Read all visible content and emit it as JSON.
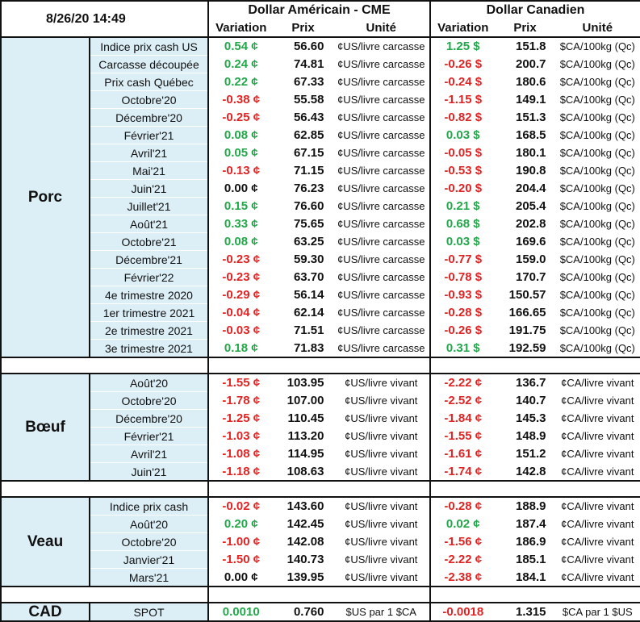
{
  "header": {
    "date": "8/26/20 14:49",
    "us_group": "Dollar Américain - CME",
    "ca_group": "Dollar Canadien",
    "col_variation": "Variation",
    "col_prix": "Prix",
    "col_unite": "Unité"
  },
  "sections": {
    "porc": {
      "name": "Porc",
      "rows": [
        {
          "label": "Indice prix cash US",
          "us_var": "0.54 ¢",
          "us_prix": "56.60",
          "us_unit": "¢US/livre carcasse",
          "ca_var": "1.25 $",
          "ca_prix": "151.8",
          "ca_unit": "$CA/100kg (Qc)"
        },
        {
          "label": "Carcasse découpée",
          "us_var": "0.24 ¢",
          "us_prix": "74.81",
          "us_unit": "¢US/livre carcasse",
          "ca_var": "-0.26 $",
          "ca_prix": "200.7",
          "ca_unit": "$CA/100kg (Qc)"
        },
        {
          "label": "Prix cash Québec",
          "us_var": "0.22 ¢",
          "us_prix": "67.33",
          "us_unit": "¢US/livre carcasse",
          "ca_var": "-0.24 $",
          "ca_prix": "180.6",
          "ca_unit": "$CA/100kg (Qc)"
        },
        {
          "label": "Octobre'20",
          "us_var": "-0.38 ¢",
          "us_prix": "55.58",
          "us_unit": "¢US/livre carcasse",
          "ca_var": "-1.15 $",
          "ca_prix": "149.1",
          "ca_unit": "$CA/100kg (Qc)"
        },
        {
          "label": "Décembre'20",
          "us_var": "-0.25 ¢",
          "us_prix": "56.43",
          "us_unit": "¢US/livre carcasse",
          "ca_var": "-0.82 $",
          "ca_prix": "151.3",
          "ca_unit": "$CA/100kg (Qc)"
        },
        {
          "label": "Février'21",
          "us_var": "0.08 ¢",
          "us_prix": "62.85",
          "us_unit": "¢US/livre carcasse",
          "ca_var": "0.03 $",
          "ca_prix": "168.5",
          "ca_unit": "$CA/100kg (Qc)"
        },
        {
          "label": "Avril'21",
          "us_var": "0.05 ¢",
          "us_prix": "67.15",
          "us_unit": "¢US/livre carcasse",
          "ca_var": "-0.05 $",
          "ca_prix": "180.1",
          "ca_unit": "$CA/100kg (Qc)"
        },
        {
          "label": "Mai'21",
          "us_var": "-0.13 ¢",
          "us_prix": "71.15",
          "us_unit": "¢US/livre carcasse",
          "ca_var": "-0.53 $",
          "ca_prix": "190.8",
          "ca_unit": "$CA/100kg (Qc)"
        },
        {
          "label": "Juin'21",
          "us_var": "0.00 ¢",
          "us_prix": "76.23",
          "us_unit": "¢US/livre carcasse",
          "ca_var": "-0.20 $",
          "ca_prix": "204.4",
          "ca_unit": "$CA/100kg (Qc)"
        },
        {
          "label": "Juillet'21",
          "us_var": "0.15 ¢",
          "us_prix": "76.60",
          "us_unit": "¢US/livre carcasse",
          "ca_var": "0.21 $",
          "ca_prix": "205.4",
          "ca_unit": "$CA/100kg (Qc)"
        },
        {
          "label": "Août'21",
          "us_var": "0.33 ¢",
          "us_prix": "75.65",
          "us_unit": "¢US/livre carcasse",
          "ca_var": "0.68 $",
          "ca_prix": "202.8",
          "ca_unit": "$CA/100kg (Qc)"
        },
        {
          "label": "Octobre'21",
          "us_var": "0.08 ¢",
          "us_prix": "63.25",
          "us_unit": "¢US/livre carcasse",
          "ca_var": "0.03 $",
          "ca_prix": "169.6",
          "ca_unit": "$CA/100kg (Qc)"
        },
        {
          "label": "Décembre'21",
          "us_var": "-0.23 ¢",
          "us_prix": "59.30",
          "us_unit": "¢US/livre carcasse",
          "ca_var": "-0.77 $",
          "ca_prix": "159.0",
          "ca_unit": "$CA/100kg (Qc)"
        },
        {
          "label": "Février'22",
          "us_var": "-0.23 ¢",
          "us_prix": "63.70",
          "us_unit": "¢US/livre carcasse",
          "ca_var": "-0.78 $",
          "ca_prix": "170.7",
          "ca_unit": "$CA/100kg (Qc)"
        },
        {
          "label": "4e trimestre 2020",
          "us_var": "-0.29 ¢",
          "us_prix": "56.14",
          "us_unit": "¢US/livre carcasse",
          "ca_var": "-0.93 $",
          "ca_prix": "150.57",
          "ca_unit": "$CA/100kg (Qc)"
        },
        {
          "label": "1er trimestre 2021",
          "us_var": "-0.04 ¢",
          "us_prix": "62.14",
          "us_unit": "¢US/livre carcasse",
          "ca_var": "-0.28 $",
          "ca_prix": "166.65",
          "ca_unit": "$CA/100kg (Qc)"
        },
        {
          "label": "2e trimestre 2021",
          "us_var": "-0.03 ¢",
          "us_prix": "71.51",
          "us_unit": "¢US/livre carcasse",
          "ca_var": "-0.26 $",
          "ca_prix": "191.75",
          "ca_unit": "$CA/100kg (Qc)"
        },
        {
          "label": "3e trimestre 2021",
          "us_var": "0.18 ¢",
          "us_prix": "71.83",
          "us_unit": "¢US/livre carcasse",
          "ca_var": "0.31 $",
          "ca_prix": "192.59",
          "ca_unit": "$CA/100kg (Qc)"
        }
      ]
    },
    "boeuf": {
      "name": "Bœuf",
      "rows": [
        {
          "label": "Août'20",
          "us_var": "-1.55 ¢",
          "us_prix": "103.95",
          "us_unit": "¢US/livre vivant",
          "ca_var": "-2.22 ¢",
          "ca_prix": "136.7",
          "ca_unit": "¢CA/livre vivant"
        },
        {
          "label": "Octobre'20",
          "us_var": "-1.78 ¢",
          "us_prix": "107.00",
          "us_unit": "¢US/livre vivant",
          "ca_var": "-2.52 ¢",
          "ca_prix": "140.7",
          "ca_unit": "¢CA/livre vivant"
        },
        {
          "label": "Décembre'20",
          "us_var": "-1.25 ¢",
          "us_prix": "110.45",
          "us_unit": "¢US/livre vivant",
          "ca_var": "-1.84 ¢",
          "ca_prix": "145.3",
          "ca_unit": "¢CA/livre vivant"
        },
        {
          "label": "Février'21",
          "us_var": "-1.03 ¢",
          "us_prix": "113.20",
          "us_unit": "¢US/livre vivant",
          "ca_var": "-1.55 ¢",
          "ca_prix": "148.9",
          "ca_unit": "¢CA/livre vivant"
        },
        {
          "label": "Avril'21",
          "us_var": "-1.08 ¢",
          "us_prix": "114.95",
          "us_unit": "¢US/livre vivant",
          "ca_var": "-1.61 ¢",
          "ca_prix": "151.2",
          "ca_unit": "¢CA/livre vivant"
        },
        {
          "label": "Juin'21",
          "us_var": "-1.18 ¢",
          "us_prix": "108.63",
          "us_unit": "¢US/livre vivant",
          "ca_var": "-1.74 ¢",
          "ca_prix": "142.8",
          "ca_unit": "¢CA/livre vivant"
        }
      ]
    },
    "veau": {
      "name": "Veau",
      "rows": [
        {
          "label": "Indice prix cash",
          "us_var": "-0.02 ¢",
          "us_prix": "143.60",
          "us_unit": "¢US/livre vivant",
          "ca_var": "-0.28 ¢",
          "ca_prix": "188.9",
          "ca_unit": "¢CA/livre vivant"
        },
        {
          "label": "Août'20",
          "us_var": "0.20 ¢",
          "us_prix": "142.45",
          "us_unit": "¢US/livre vivant",
          "ca_var": "0.02 ¢",
          "ca_prix": "187.4",
          "ca_unit": "¢CA/livre vivant"
        },
        {
          "label": "Octobre'20",
          "us_var": "-1.00 ¢",
          "us_prix": "142.08",
          "us_unit": "¢US/livre vivant",
          "ca_var": "-1.56 ¢",
          "ca_prix": "186.9",
          "ca_unit": "¢CA/livre vivant"
        },
        {
          "label": "Janvier'21",
          "us_var": "-1.50 ¢",
          "us_prix": "140.73",
          "us_unit": "¢US/livre vivant",
          "ca_var": "-2.22 ¢",
          "ca_prix": "185.1",
          "ca_unit": "¢CA/livre vivant"
        },
        {
          "label": "Mars'21",
          "us_var": "0.00 ¢",
          "us_prix": "139.95",
          "us_unit": "¢US/livre vivant",
          "ca_var": "-2.38 ¢",
          "ca_prix": "184.1",
          "ca_unit": "¢CA/livre vivant"
        }
      ]
    },
    "cad": {
      "name": "CAD",
      "rows": [
        {
          "label": "SPOT",
          "us_var": "0.0010",
          "us_prix": "0.760",
          "us_unit": "$US par 1 $CA",
          "ca_var": "-0.0018",
          "ca_prix": "1.315",
          "ca_unit": "$CA par 1 $US"
        }
      ]
    }
  },
  "colors": {
    "positive": "#22a84a",
    "negative": "#e02424",
    "zero": "#111111",
    "shade": "#dceef6"
  }
}
